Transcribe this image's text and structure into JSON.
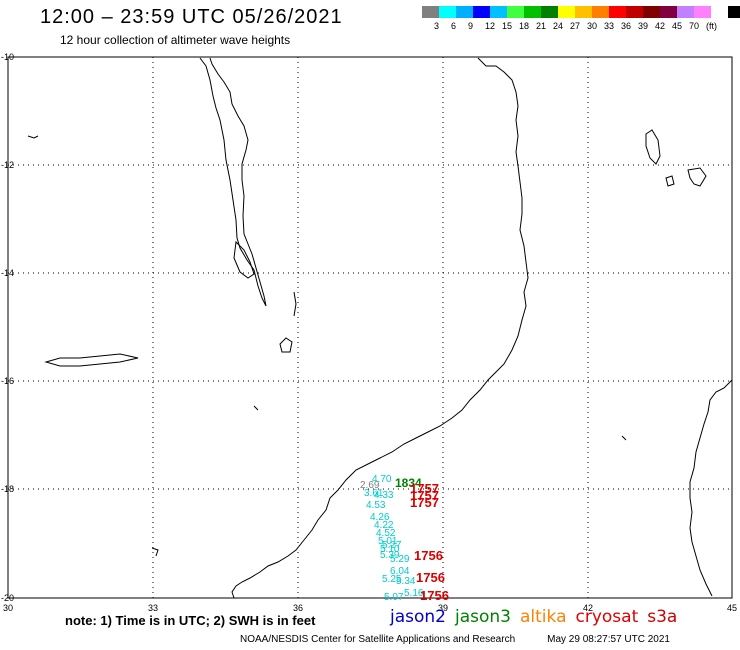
{
  "header": {
    "title": "12:00 – 23:59 UTC 05/26/2021",
    "subtitle": "12 hour collection of altimeter wave heights"
  },
  "colorbar": {
    "colors": [
      "#808080",
      "#00ffff",
      "#00b0ff",
      "#0000ff",
      "#00c0ff",
      "#40ff40",
      "#00c000",
      "#008000",
      "#ffff00",
      "#ffc000",
      "#ff8000",
      "#ff0000",
      "#c00000",
      "#800000",
      "#800040",
      "#c080ff",
      "#ff80ff",
      "#ffffff",
      "#000000"
    ],
    "labels": [
      "3",
      "6",
      "9",
      "12",
      "15",
      "18",
      "21",
      "24",
      "27",
      "30",
      "33",
      "36",
      "39",
      "42",
      "45",
      "70",
      "(ft)"
    ]
  },
  "map": {
    "x_ticks": [
      "30",
      "33",
      "36",
      "39",
      "42",
      "45"
    ],
    "y_ticks": [
      "-10",
      "-12",
      "-14",
      "-16",
      "-18",
      "-20"
    ]
  },
  "observations": [
    {
      "label": "2.69",
      "color": "#808080"
    },
    {
      "label": "4.70",
      "color": "#00cccc"
    },
    {
      "label": "1834",
      "color": "#008000"
    },
    {
      "label": "1757",
      "color": "#dd0000"
    },
    {
      "label": "1757",
      "color": "#dd0000"
    },
    {
      "label": "1757",
      "color": "#dd0000"
    },
    {
      "label": "3.61",
      "color": "#00cccc"
    },
    {
      "label": "4.33",
      "color": "#00cccc"
    },
    {
      "label": "4.53",
      "color": "#00cccc"
    },
    {
      "label": "4.26",
      "color": "#00cccc"
    },
    {
      "label": "4.22",
      "color": "#00cccc"
    },
    {
      "label": "4.52",
      "color": "#00cccc"
    },
    {
      "label": "5.01",
      "color": "#00cccc"
    },
    {
      "label": "5.10",
      "color": "#00cccc"
    },
    {
      "label": "5.27",
      "color": "#00cccc"
    },
    {
      "label": "5.39",
      "color": "#00cccc"
    },
    {
      "label": "5.29",
      "color": "#00cccc"
    },
    {
      "label": "1756",
      "color": "#dd0000"
    },
    {
      "label": "6.04",
      "color": "#00cccc"
    },
    {
      "label": "5.25",
      "color": "#00cccc"
    },
    {
      "label": "5.34",
      "color": "#00cccc"
    },
    {
      "label": "1756",
      "color": "#dd0000"
    },
    {
      "label": "5.16",
      "color": "#00cccc"
    },
    {
      "label": "5.07",
      "color": "#00cccc"
    },
    {
      "label": "1756",
      "color": "#dd0000"
    }
  ],
  "note": "note:  1) Time is in UTC;  2) SWH is in feet",
  "satellites": [
    {
      "name": "jason2",
      "color": "#0000cc"
    },
    {
      "name": "jason3",
      "color": "#008000"
    },
    {
      "name": "altika",
      "color": "#ff8000"
    },
    {
      "name": "cryosat",
      "color": "#dd0000"
    },
    {
      "name": "s3a",
      "color": "#cc0000"
    }
  ],
  "footer": {
    "credit": "NOAA/NESDIS Center for Satellite Applications and Research",
    "timestamp": "May 29 08:27:57 UTC 2021"
  }
}
